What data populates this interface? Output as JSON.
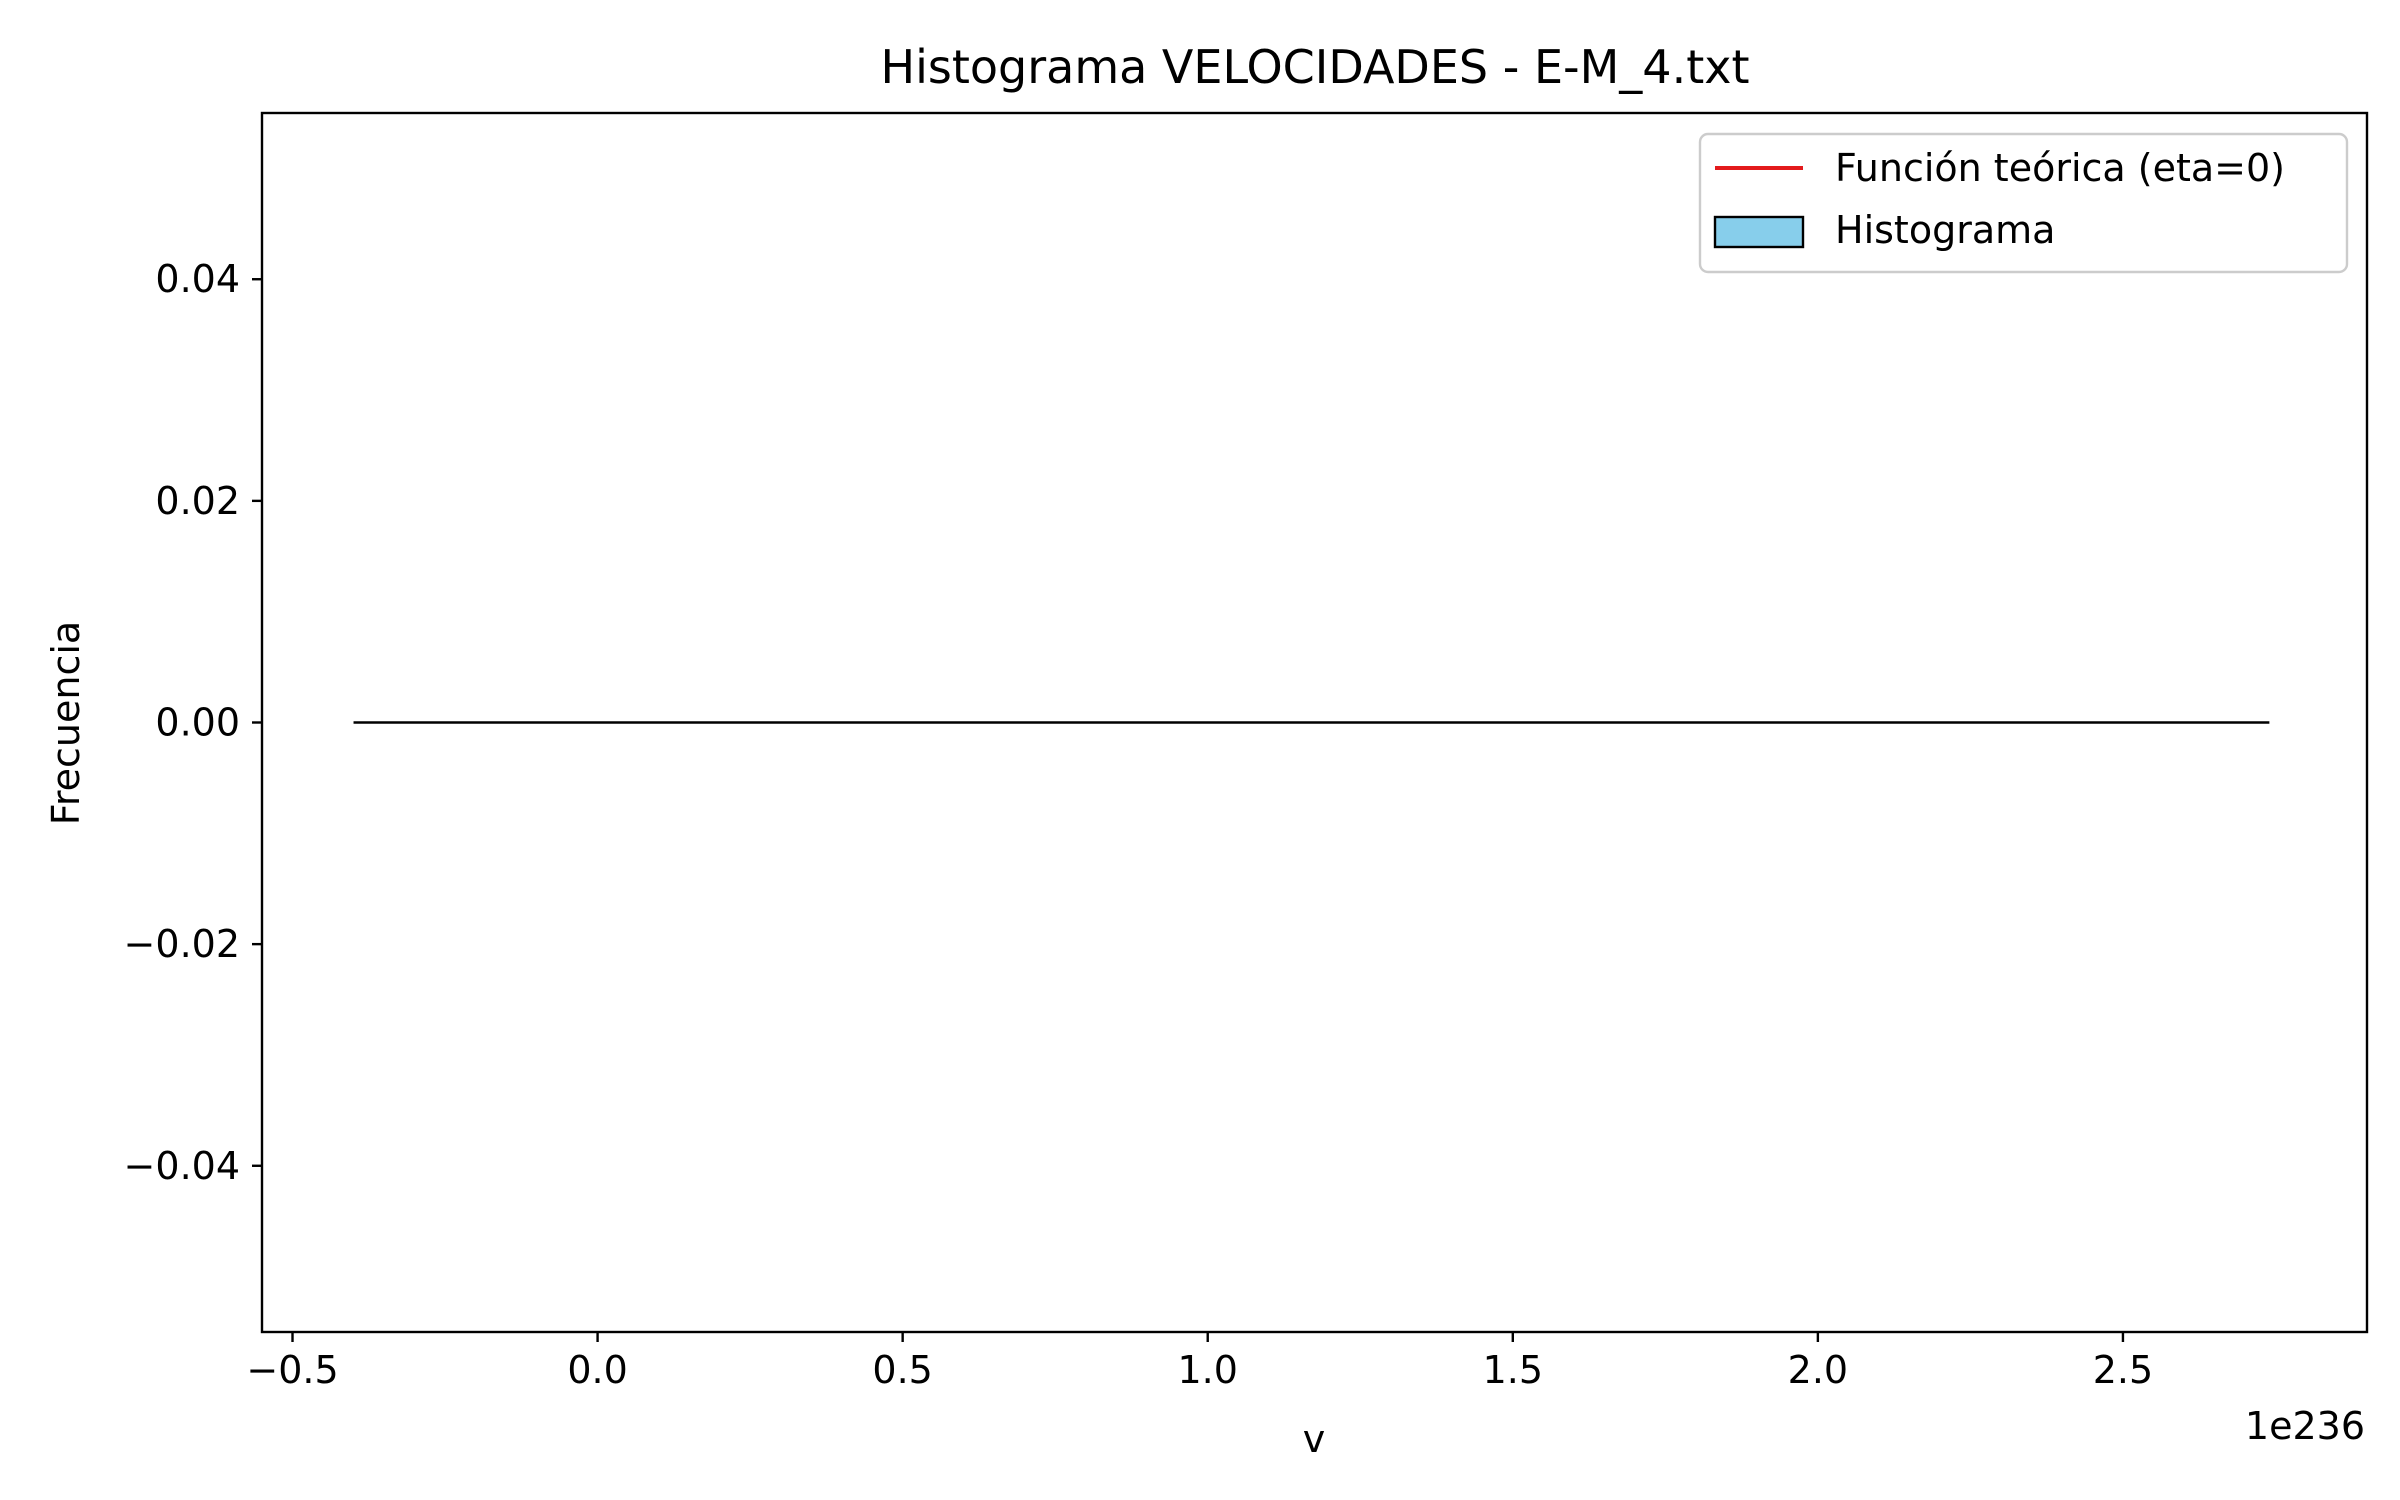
{
  "chart_data": {
    "type": "bar",
    "title": "Histograma VELOCIDADES - E-M_4.txt",
    "xlabel": "v",
    "ylabel": "Frecuencia",
    "x_offset_label": "1e236",
    "xlim": [
      -0.55,
      2.9
    ],
    "ylim": [
      -0.055,
      0.055
    ],
    "x_ticks": [
      {
        "value": -0.5,
        "label": "−0.5"
      },
      {
        "value": 0.0,
        "label": "0.0"
      },
      {
        "value": 0.5,
        "label": "0.5"
      },
      {
        "value": 1.0,
        "label": "1.0"
      },
      {
        "value": 1.5,
        "label": "1.5"
      },
      {
        "value": 2.0,
        "label": "2.0"
      },
      {
        "value": 2.5,
        "label": "2.5"
      }
    ],
    "y_ticks": [
      {
        "value": 0.04,
        "label": "0.04"
      },
      {
        "value": 0.02,
        "label": "0.02"
      },
      {
        "value": 0.0,
        "label": "0.00"
      },
      {
        "value": -0.02,
        "label": "−0.02"
      },
      {
        "value": -0.04,
        "label": "−0.04"
      }
    ],
    "series": [
      {
        "name": "Histograma",
        "kind": "histogram",
        "color": "#87ceeb",
        "edge_color": "#000000",
        "bin_range": [
          -0.4,
          2.74
        ],
        "values": [
          0
        ]
      },
      {
        "name": "Función teórica (eta=0)",
        "kind": "line",
        "color": "#e31a1c",
        "x": [],
        "y": []
      }
    ],
    "legend": {
      "position": "top-right",
      "entries": [
        {
          "label": "Función teórica (eta=0)",
          "kind": "line",
          "color": "#e31a1c"
        },
        {
          "label": "Histograma",
          "kind": "patch",
          "color": "#87ceeb",
          "edge_color": "#000000"
        }
      ]
    },
    "grid": false
  }
}
